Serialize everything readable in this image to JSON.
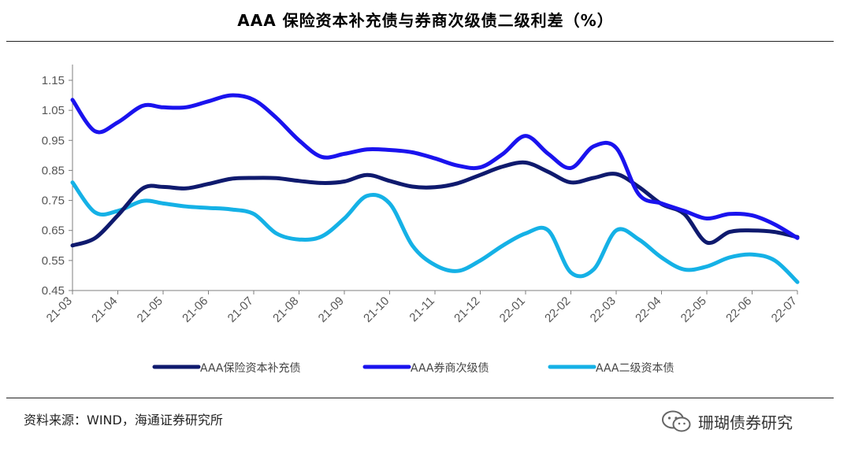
{
  "header": {
    "title": "AAA 保险资本补充债与券商次级债二级利差（%）"
  },
  "footer": {
    "source": "资料来源：WIND，海通证券研究所",
    "watermark": "珊瑚债券研究"
  },
  "icons": {
    "watermark": "wechat-logo-icon"
  },
  "colors": {
    "series_1": "#0f1a6e",
    "series_2": "#1a13ee",
    "series_3": "#15b1e6",
    "axis": "#7f7f7f",
    "tick_text": "#555555"
  },
  "chart_data": {
    "type": "line",
    "title": "AAA 保险资本补充债与券商次级债二级利差（%）",
    "xlabel": "",
    "ylabel": "",
    "x_ticks": [
      "21-03",
      "21-04",
      "21-05",
      "21-06",
      "21-07",
      "21-08",
      "21-09",
      "21-10",
      "21-11",
      "21-12",
      "22-01",
      "22-02",
      "22-03",
      "22-04",
      "22-05",
      "22-06",
      "22-07"
    ],
    "y_ticks": [
      "1.15",
      "1.05",
      "0.95",
      "0.85",
      "0.75",
      "0.65",
      "0.55",
      "0.45"
    ],
    "ylim": [
      0.45,
      1.15
    ],
    "grid": false,
    "legend_position": "bottom",
    "x_unit": "month index (0 = 21-03, 16 = 22-07)",
    "series": [
      {
        "name": "AAA保险资本补充债",
        "x": [
          0,
          0.5,
          1,
          1.55,
          2,
          2.5,
          3,
          3.5,
          4,
          4.5,
          5,
          5.5,
          6,
          6.5,
          7,
          7.5,
          8,
          8.5,
          9,
          9.5,
          10,
          10.5,
          11,
          11.5,
          12,
          12.5,
          13,
          13.5,
          14,
          14.5,
          15,
          15.5,
          16
        ],
        "values": [
          0.6,
          0.625,
          0.7,
          0.79,
          0.795,
          0.79,
          0.805,
          0.822,
          0.825,
          0.824,
          0.815,
          0.808,
          0.813,
          0.835,
          0.815,
          0.796,
          0.794,
          0.807,
          0.835,
          0.863,
          0.876,
          0.845,
          0.81,
          0.825,
          0.838,
          0.795,
          0.738,
          0.705,
          0.61,
          0.645,
          0.65,
          0.645,
          0.628
        ]
      },
      {
        "name": "AAA券商次级债",
        "x": [
          0,
          0.5,
          1,
          1.55,
          2,
          2.5,
          3,
          3.5,
          4,
          4.5,
          5,
          5.5,
          6,
          6.5,
          7,
          7.5,
          8,
          8.5,
          9,
          9.5,
          10,
          10.5,
          11,
          11.5,
          12,
          12.5,
          13,
          13.5,
          14,
          14.5,
          15,
          15.5,
          16
        ],
        "values": [
          1.085,
          0.98,
          1.01,
          1.065,
          1.06,
          1.06,
          1.08,
          1.1,
          1.085,
          1.025,
          0.95,
          0.895,
          0.905,
          0.92,
          0.918,
          0.91,
          0.89,
          0.866,
          0.86,
          0.905,
          0.965,
          0.905,
          0.858,
          0.93,
          0.925,
          0.77,
          0.74,
          0.715,
          0.69,
          0.705,
          0.7,
          0.67,
          0.625
        ]
      },
      {
        "name": "AAA二级资本债",
        "x": [
          0,
          0.5,
          1,
          1.55,
          2,
          2.5,
          3,
          3.5,
          4,
          4.5,
          5,
          5.5,
          6,
          6.5,
          7,
          7.5,
          8,
          8.5,
          9,
          9.5,
          10,
          10.5,
          11,
          11.5,
          12,
          12.5,
          13,
          13.5,
          14,
          14.5,
          15,
          15.5,
          16
        ],
        "values": [
          0.81,
          0.71,
          0.715,
          0.748,
          0.74,
          0.73,
          0.725,
          0.72,
          0.705,
          0.64,
          0.62,
          0.63,
          0.69,
          0.765,
          0.74,
          0.6,
          0.535,
          0.515,
          0.55,
          0.6,
          0.64,
          0.65,
          0.51,
          0.52,
          0.65,
          0.62,
          0.56,
          0.52,
          0.53,
          0.56,
          0.57,
          0.55,
          0.478
        ]
      }
    ]
  }
}
